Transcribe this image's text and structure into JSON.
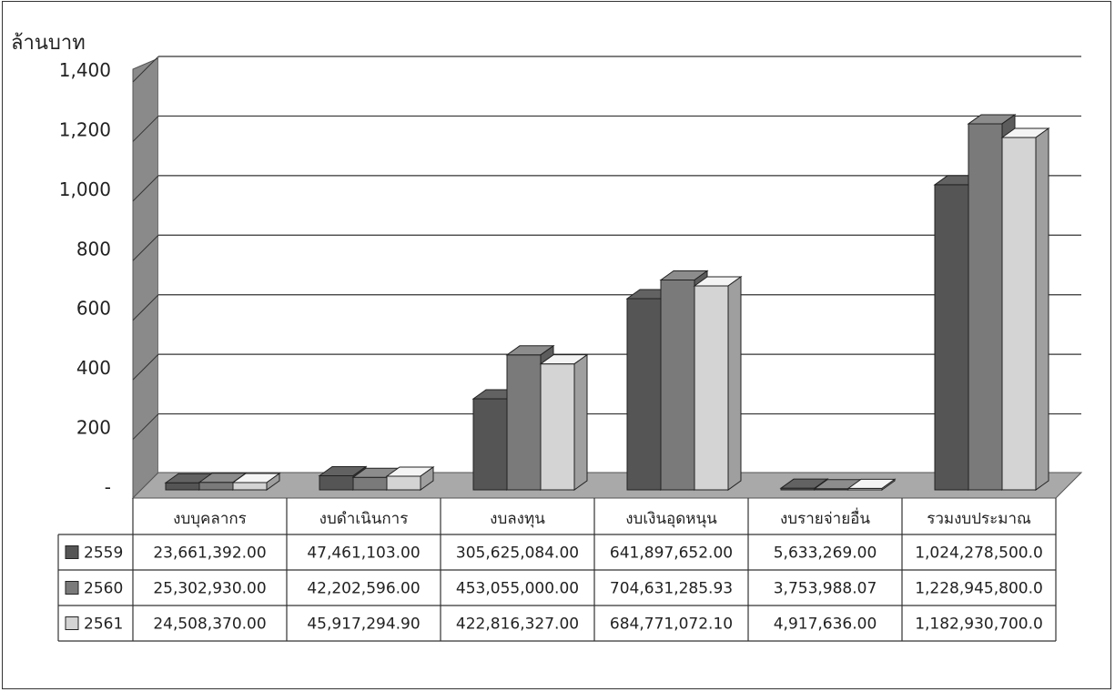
{
  "chart_data": {
    "type": "bar",
    "title": "",
    "ylabel": "ล้านบาท",
    "xlabel": "",
    "ylim": [
      0,
      1400
    ],
    "yticks": [
      0,
      200,
      400,
      600,
      800,
      1000,
      1200,
      1400
    ],
    "ytick_labels": [
      "-",
      "200",
      "400",
      "600",
      "800",
      "1,000",
      "1,200",
      "1,400"
    ],
    "grid": true,
    "legend": "table-left",
    "categories": [
      "งบบุคลากร",
      "งบดำเนินการ",
      "งบลงทุน",
      "งบเงินอุดหนุน",
      "งบรายจ่ายอื่น",
      "รวมงบประมาณ"
    ],
    "series": [
      {
        "name": "2559",
        "color": "#555555",
        "values": [
          23.66,
          47.46,
          305.63,
          641.9,
          5.63,
          1024.28
        ],
        "labels": [
          "23,661,392.00",
          "47,461,103.00",
          "305,625,084.00",
          "641,897,652.00",
          "5,633,269.00",
          "1,024,278,500.0"
        ]
      },
      {
        "name": "2560",
        "color": "#7a7a7a",
        "values": [
          25.3,
          42.2,
          453.06,
          704.63,
          3.75,
          1228.95
        ],
        "labels": [
          "25,302,930.00",
          "42,202,596.00",
          "453,055,000.00",
          "704,631,285.93",
          "3,753,988.07",
          "1,228,945,800.0"
        ]
      },
      {
        "name": "2561",
        "color": "#d4d4d4",
        "values": [
          24.51,
          45.92,
          422.82,
          684.77,
          4.92,
          1182.93
        ],
        "labels": [
          "24,508,370.00",
          "45,917,294.90",
          "422,816,327.00",
          "684,771,072.10",
          "4,917,636.00",
          "1,182,930,700.0"
        ]
      }
    ]
  }
}
